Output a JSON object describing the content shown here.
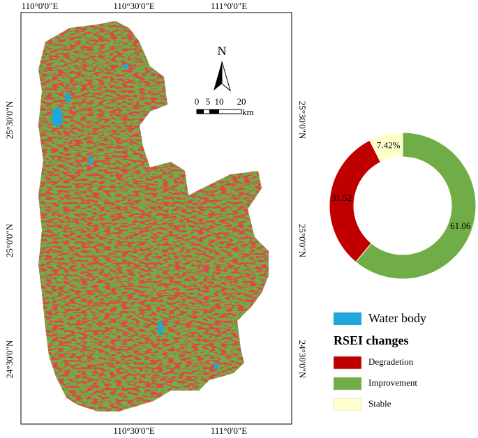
{
  "map": {
    "lon_labels": [
      "110°0'0\"E",
      "110°30'0\"E",
      "111°0'0\"E"
    ],
    "lat_labels": [
      "25°30'0\"N",
      "25°0'0\"N",
      "24°30'0\"N"
    ],
    "north": "N",
    "scale_labels": [
      "0",
      "5",
      "10",
      "20"
    ],
    "scale_unit": "km",
    "legend_water": "Water body",
    "legend_title": "RSEI changes"
  },
  "chart_data": {
    "type": "donut",
    "categories": [
      "Degradetion",
      "Improvement",
      "Stable"
    ],
    "values": [
      31.52,
      61.06,
      7.42
    ],
    "value_labels": [
      "31.52",
      "61.06",
      "7.42%"
    ],
    "colors": [
      "#c00000",
      "#70ad47",
      "#ffffcc"
    ]
  }
}
